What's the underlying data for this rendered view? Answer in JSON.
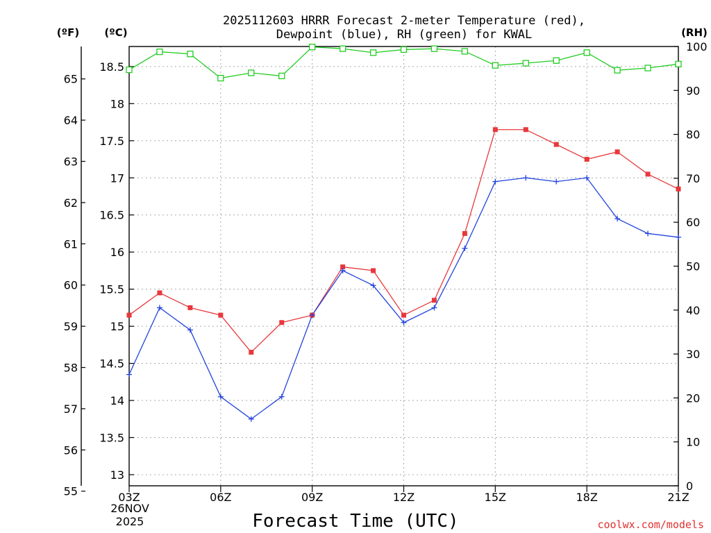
{
  "chart_data": {
    "type": "line",
    "title_line1": "2025112603 HRRR Forecast 2-meter Temperature (red),",
    "title_line2": "Dewpoint (blue), RH (green) for KWAL",
    "unit_left_f": "(ºF)",
    "unit_left_c": "(ºC)",
    "unit_right": "(RH)",
    "xlabel": "Forecast Time (UTC)",
    "credit": "coolwx.com/models",
    "date_label_1": "26NOV",
    "date_label_2": "2025",
    "x_hours": [
      3,
      4,
      5,
      6,
      7,
      8,
      9,
      10,
      11,
      12,
      13,
      14,
      15,
      16,
      17,
      18,
      19,
      20,
      21
    ],
    "x_ticks": [
      {
        "hour": 3,
        "label": "03Z"
      },
      {
        "hour": 6,
        "label": "06Z"
      },
      {
        "hour": 9,
        "label": "09Z"
      },
      {
        "hour": 12,
        "label": "12Z"
      },
      {
        "hour": 15,
        "label": "15Z"
      },
      {
        "hour": 18,
        "label": "18Z"
      },
      {
        "hour": 21,
        "label": "21Z"
      }
    ],
    "xlim": [
      3,
      21
    ],
    "celsius_axis": {
      "ylim": [
        12.85,
        18.77
      ],
      "ticks": [
        "13",
        "13.5",
        "14",
        "14.5",
        "15",
        "15.5",
        "16",
        "16.5",
        "17",
        "17.5",
        "18",
        "18.5"
      ]
    },
    "fahrenheit_ticks": [
      "55",
      "56",
      "57",
      "58",
      "59",
      "60",
      "61",
      "62",
      "63",
      "64",
      "65"
    ],
    "rh_axis": {
      "ylim": [
        0,
        100
      ],
      "ticks": [
        "0",
        "10",
        "20",
        "30",
        "40",
        "50",
        "60",
        "70",
        "80",
        "90",
        "100"
      ]
    },
    "series": [
      {
        "name": "Temperature",
        "axis": "celsius",
        "color": "#e8383c",
        "marker": "filled-square",
        "values": [
          15.15,
          15.45,
          15.25,
          15.15,
          14.65,
          15.05,
          15.15,
          15.8,
          15.75,
          15.15,
          15.35,
          16.25,
          17.65,
          17.65,
          17.45,
          17.25,
          17.35,
          17.05,
          16.85
        ]
      },
      {
        "name": "Dewpoint",
        "axis": "celsius",
        "color": "#2244dd",
        "marker": "plus",
        "values": [
          14.35,
          15.25,
          14.95,
          14.05,
          13.75,
          14.05,
          15.15,
          15.75,
          15.55,
          15.05,
          15.25,
          16.05,
          16.95,
          17.0,
          16.95,
          17.0,
          16.45,
          16.25,
          16.2
        ]
      },
      {
        "name": "RH",
        "axis": "rh",
        "color": "#22cc22",
        "marker": "open-square",
        "values": [
          94.7,
          98.8,
          98.3,
          92.8,
          94.0,
          93.3,
          99.9,
          99.5,
          98.6,
          99.3,
          99.5,
          98.9,
          95.7,
          96.2,
          96.8,
          98.6,
          94.6,
          95.1,
          96.0
        ]
      }
    ]
  }
}
